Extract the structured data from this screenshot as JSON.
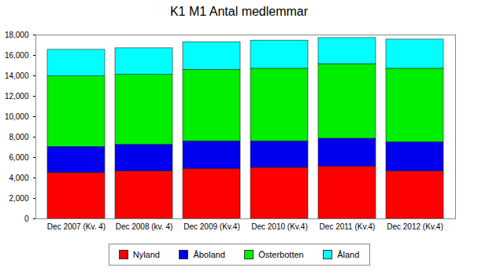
{
  "chart_data": {
    "type": "bar",
    "stacked": true,
    "title": "K1 M1 Antal medlemmar",
    "categories": [
      "Dec 2007 (Kv. 4)",
      "Dec 2008 (kv. 4)",
      "Dec 2009 (Kv.4)",
      "Dec 2010 (Kv.4)",
      "Dec 2011 (Kv.4)",
      "Dec 2012 (Kv.4)"
    ],
    "series": [
      {
        "name": "Nyland",
        "color": "#ff0000",
        "values": [
          4500,
          4650,
          4900,
          5000,
          5100,
          4650
        ]
      },
      {
        "name": "Åboland",
        "color": "#0000ee",
        "values": [
          2550,
          2600,
          2700,
          2600,
          2750,
          2850
        ]
      },
      {
        "name": "Österbotten",
        "color": "#00ee00",
        "values": [
          6900,
          6850,
          7000,
          7100,
          7300,
          7200
        ]
      },
      {
        "name": "Åland",
        "color": "#00ffff",
        "values": [
          2600,
          2600,
          2700,
          2750,
          2550,
          2850
        ]
      }
    ],
    "ylim": [
      0,
      18000
    ],
    "yticks": [
      0,
      {
        "value": 2000,
        "label": "2,000"
      },
      {
        "value": 4000,
        "label": "4,000"
      },
      {
        "value": 6000,
        "label": "6,000"
      },
      {
        "value": 8000,
        "label": "8,000"
      },
      {
        "value": 10000,
        "label": "10,000"
      },
      {
        "value": 12000,
        "label": "12,000"
      },
      {
        "value": 14000,
        "label": "14,000"
      },
      {
        "value": 16000,
        "label": "16,000"
      },
      {
        "value": 18000,
        "label": "18,000"
      }
    ],
    "grid": false,
    "legend": "bottom"
  }
}
